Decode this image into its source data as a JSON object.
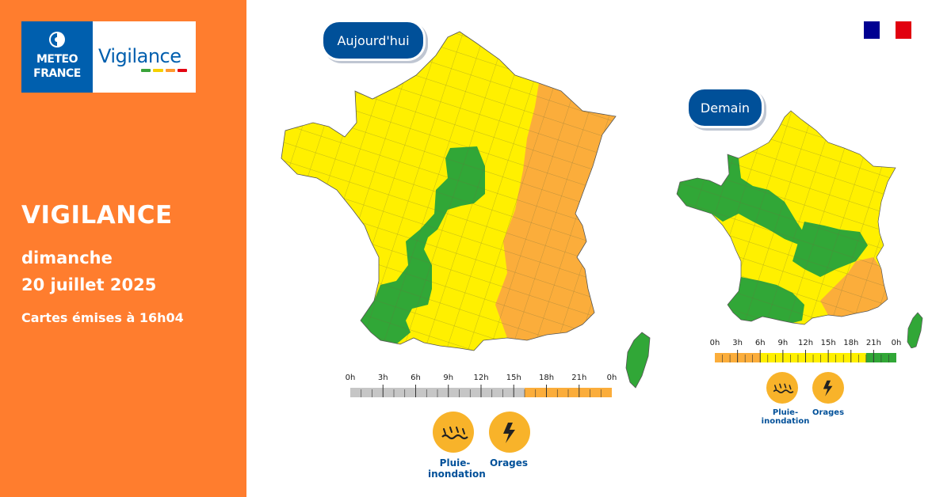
{
  "brand": {
    "logo_line1": "METEO",
    "logo_line2": "FRANCE",
    "logo_word": "Vigilance",
    "colors": [
      "#3aa33a",
      "#f5d000",
      "#ff9a2e",
      "#e30613"
    ]
  },
  "header": {
    "title": "VIGILANCE",
    "day": "dimanche",
    "date": "20 juillet 2025",
    "issued": "Cartes émises à 16h04"
  },
  "today": {
    "label": "Aujourd'hui",
    "timeline_hours": [
      "0h",
      "3h",
      "6h",
      "9h",
      "12h",
      "15h",
      "18h",
      "21h",
      "0h"
    ],
    "timeline_segments": [
      {
        "level": "none",
        "hours": 16
      },
      {
        "level": "orange",
        "hours": 8
      }
    ],
    "hazards": [
      {
        "icon": "rain-flood-icon",
        "label_line1": "Pluie-",
        "label_line2": "inondation"
      },
      {
        "icon": "thunderstorm-icon",
        "label_line1": "Orages",
        "label_line2": ""
      }
    ]
  },
  "tomorrow": {
    "label": "Demain",
    "timeline_hours": [
      "0h",
      "3h",
      "6h",
      "9h",
      "12h",
      "15h",
      "18h",
      "21h",
      "0h"
    ],
    "timeline_segments": [
      {
        "level": "orange",
        "hours": 6
      },
      {
        "level": "yellow",
        "hours": 14
      },
      {
        "level": "green",
        "hours": 4
      }
    ],
    "hazards": [
      {
        "icon": "rain-flood-icon",
        "label_line1": "Pluie-",
        "label_line2": "inondation"
      },
      {
        "icon": "thunderstorm-icon",
        "label_line1": "Orages",
        "label_line2": ""
      }
    ]
  },
  "palette": {
    "green": "#31a737",
    "yellow": "#fff000",
    "orange": "#fbad3b",
    "grey": "#c6c6c6",
    "panel": "#ff7d2e",
    "navy": "#005099"
  }
}
